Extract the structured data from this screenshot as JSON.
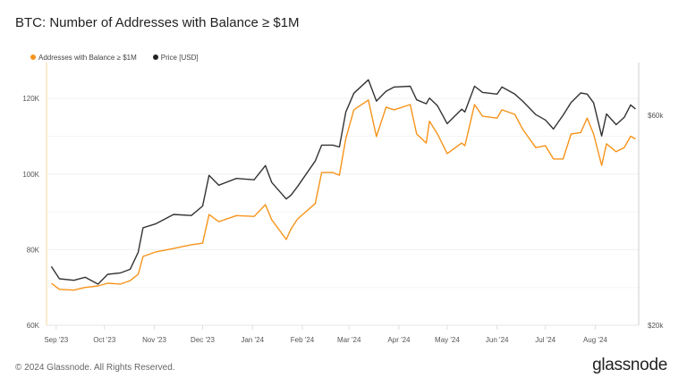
{
  "title": "BTC: Number of Addresses with Balance ≥ $1M",
  "footer": "© 2024 Glassnode. All Rights Reserved.",
  "logo": "glassnode",
  "chart_data": {
    "type": "line",
    "title": "BTC: Number of Addresses with Balance ≥ $1M",
    "legend_placement": "top-left",
    "grid": true,
    "x_ticks": [
      "Sep '23",
      "Oct '23",
      "Nov '23",
      "Dec '23",
      "Jan '24",
      "Feb '24",
      "Mar '24",
      "Apr '24",
      "May '24",
      "Jun '24",
      "Jul '24",
      "Aug '24"
    ],
    "y_ticks": [
      "60K",
      "80K",
      "100K",
      "120K"
    ],
    "y2_ticks": [
      "$20k",
      "$60k"
    ],
    "ylim": [
      60000,
      129500
    ],
    "y2lim": [
      20000,
      79000
    ],
    "y2_scale": "log",
    "xlim": [
      "2023-08-26",
      "2024-08-28"
    ],
    "x": [
      "2023-08-29",
      "2023-09-03",
      "2023-09-12",
      "2023-09-19",
      "2023-09-27",
      "2023-10-03",
      "2023-10-11",
      "2023-10-17",
      "2023-10-22",
      "2023-10-25",
      "2023-11-02",
      "2023-11-13",
      "2023-11-24",
      "2023-12-01",
      "2023-12-05",
      "2023-12-11",
      "2023-12-22",
      "2024-01-02",
      "2024-01-09",
      "2024-01-13",
      "2024-01-22",
      "2024-01-25",
      "2024-01-29",
      "2024-02-09",
      "2024-02-13",
      "2024-02-20",
      "2024-02-24",
      "2024-02-28",
      "2024-03-04",
      "2024-03-13",
      "2024-03-18",
      "2024-03-24",
      "2024-03-29",
      "2024-04-08",
      "2024-04-12",
      "2024-04-18",
      "2024-04-20",
      "2024-04-25",
      "2024-05-01",
      "2024-05-10",
      "2024-05-12",
      "2024-05-18",
      "2024-05-23",
      "2024-06-01",
      "2024-06-04",
      "2024-06-12",
      "2024-06-17",
      "2024-06-25",
      "2024-07-01",
      "2024-07-06",
      "2024-07-12",
      "2024-07-17",
      "2024-07-23",
      "2024-07-27",
      "2024-07-31",
      "2024-08-05",
      "2024-08-08",
      "2024-08-14",
      "2024-08-19",
      "2024-08-23",
      "2024-08-26"
    ],
    "series": [
      {
        "name": "Addresses with Balance ≥ $1M",
        "axis": "left",
        "color": "#f7931a",
        "values": [
          71100,
          69500,
          69300,
          70000,
          70400,
          71100,
          70900,
          71800,
          73500,
          78200,
          79400,
          80300,
          81300,
          81700,
          89300,
          87400,
          89000,
          88800,
          91900,
          87900,
          82700,
          85500,
          88100,
          92200,
          100400,
          100400,
          99700,
          109400,
          117000,
          119600,
          109900,
          117700,
          117000,
          118400,
          110600,
          108200,
          114000,
          110600,
          105400,
          108200,
          107500,
          118400,
          115300,
          114800,
          117000,
          115800,
          111800,
          107000,
          107500,
          104000,
          104000,
          110600,
          111000,
          114800,
          110600,
          102300,
          108000,
          105900,
          107000,
          110000,
          109300
        ]
      },
      {
        "name": "Price [USD]",
        "axis": "right",
        "color": "#333333",
        "values": [
          27200,
          25500,
          25300,
          25700,
          24800,
          26100,
          26300,
          26800,
          29300,
          33300,
          34000,
          35700,
          35500,
          37300,
          43800,
          41600,
          43100,
          42800,
          46100,
          42200,
          38700,
          39500,
          41300,
          47200,
          51300,
          51300,
          50800,
          61000,
          67300,
          72200,
          64600,
          68000,
          69500,
          69800,
          65000,
          63700,
          65600,
          63000,
          57400,
          61900,
          61000,
          69800,
          67600,
          67000,
          69500,
          67000,
          64500,
          60200,
          58500,
          55800,
          60000,
          64100,
          67400,
          67000,
          64000,
          53800,
          60400,
          57100,
          59300,
          63300,
          62000
        ]
      }
    ]
  }
}
